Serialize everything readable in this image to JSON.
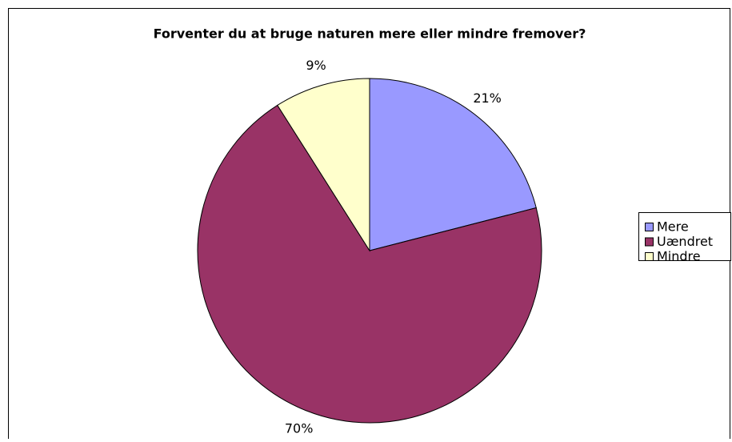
{
  "chart_data": {
    "type": "pie",
    "title": "Forventer du at bruge naturen mere eller mindre fremover?",
    "categories": [
      "Mere",
      "Uændret",
      "Mindre"
    ],
    "values": [
      21,
      70,
      9
    ],
    "value_labels": [
      "21%",
      "70%",
      "9%"
    ],
    "colors": [
      "#9999ff",
      "#993366",
      "#ffffcc"
    ],
    "legend": "right"
  }
}
